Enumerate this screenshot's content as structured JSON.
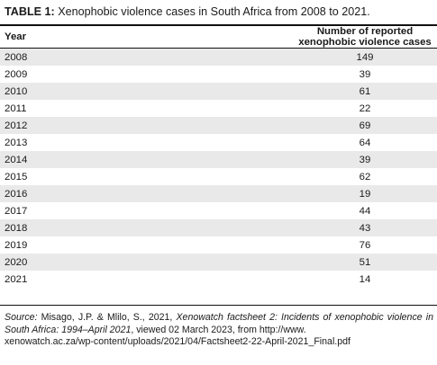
{
  "caption": {
    "label": "TABLE 1:",
    "text": " Xenophobic violence cases in South Africa from 2008 to 2021."
  },
  "table": {
    "headers": {
      "year": "Year",
      "cases": "Number of reported xenophobic violence cases"
    },
    "rows": [
      {
        "year": "2008",
        "cases": "149"
      },
      {
        "year": "2009",
        "cases": "39"
      },
      {
        "year": "2010",
        "cases": "61"
      },
      {
        "year": "2011",
        "cases": "22"
      },
      {
        "year": "2012",
        "cases": "69"
      },
      {
        "year": "2013",
        "cases": "64"
      },
      {
        "year": "2014",
        "cases": "39"
      },
      {
        "year": "2015",
        "cases": "62"
      },
      {
        "year": "2016",
        "cases": "19"
      },
      {
        "year": "2017",
        "cases": "44"
      },
      {
        "year": "2018",
        "cases": "43"
      },
      {
        "year": "2019",
        "cases": "76"
      },
      {
        "year": "2020",
        "cases": "51"
      },
      {
        "year": "2021",
        "cases": "14"
      }
    ]
  },
  "source": {
    "label": "Source:",
    "authors": " Misago, J.P. & Mlilo, S., 2021, ",
    "title": "Xenowatch factsheet 2: Incidents of xenophobic violence in South Africa: 1994–April 2021",
    "rest": ", viewed 02 March 2023, from http://www.",
    "url": "xenowatch.ac.za/wp-content/uploads/2021/04/Factsheet2-22-April-2021_Final.pdf"
  },
  "colors": {
    "stripe": "#e9e9e9",
    "rule": "#111111",
    "text": "#1a1a1a"
  }
}
